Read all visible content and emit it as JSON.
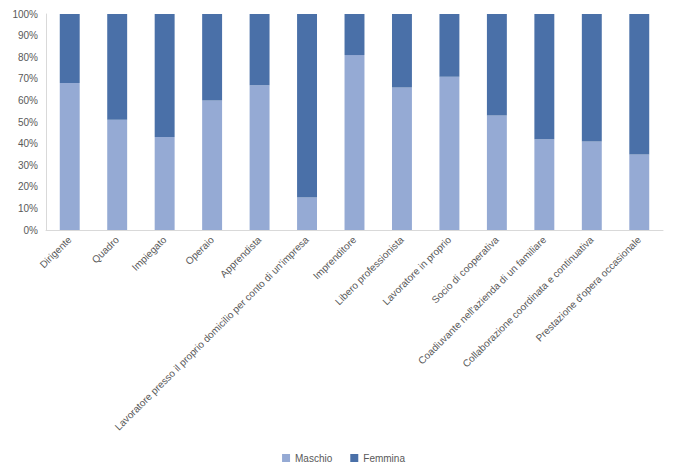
{
  "chart_data": {
    "type": "bar",
    "stacked": true,
    "grid": false,
    "legend": "bottom",
    "categories": [
      "Dirigente",
      "Quadro",
      "Impiegato",
      "Operaio",
      "Apprendista",
      "Lavoratore presso il proprio domicilio per conto di un'impresa",
      "Imprenditore",
      "Libero professionista",
      "Lavoratore in proprio",
      "Socio di cooperativa",
      "Coadiuvante nell'azienda di un familiare",
      "Collaborazione coordinata e continuativa",
      "Prestazione d'opera occasionale"
    ],
    "series": [
      {
        "name": "Maschio",
        "color": "#95aad4",
        "values": [
          68,
          51,
          43,
          60,
          67,
          15,
          81,
          66,
          71,
          53,
          42,
          41,
          35
        ]
      },
      {
        "name": "Femmina",
        "color": "#4a70a8",
        "values": [
          32,
          49,
          57,
          40,
          33,
          85,
          19,
          34,
          29,
          47,
          58,
          59,
          65
        ]
      }
    ],
    "ylim": [
      0,
      100
    ],
    "yticks": [
      {
        "value": 0,
        "label": "0%"
      },
      {
        "value": 10,
        "label": "10%"
      },
      {
        "value": 20,
        "label": "20%"
      },
      {
        "value": 30,
        "label": "30%"
      },
      {
        "value": 40,
        "label": "40%"
      },
      {
        "value": 50,
        "label": "50%"
      },
      {
        "value": 60,
        "label": "60%"
      },
      {
        "value": 70,
        "label": "70%"
      },
      {
        "value": 80,
        "label": "80%"
      },
      {
        "value": 90,
        "label": "90%"
      },
      {
        "value": 100,
        "label": "100%"
      }
    ]
  }
}
